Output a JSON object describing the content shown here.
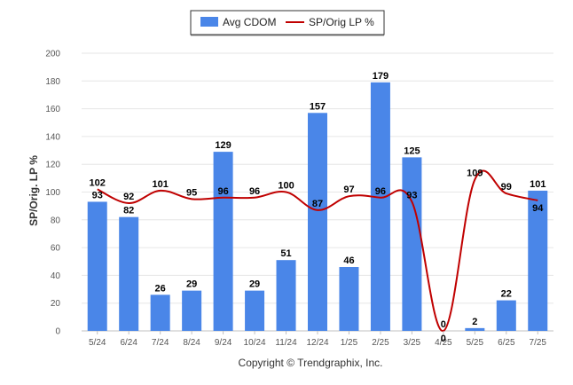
{
  "chart_data": {
    "type": "bar",
    "categories": [
      "5/24",
      "6/24",
      "7/24",
      "8/24",
      "9/24",
      "10/24",
      "11/24",
      "12/24",
      "1/25",
      "2/25",
      "3/25",
      "4/25",
      "5/25",
      "6/25",
      "7/25"
    ],
    "series": [
      {
        "name": "Avg CDOM",
        "type": "bar",
        "color": "#4a86e8",
        "values": [
          93,
          82,
          26,
          29,
          129,
          29,
          51,
          157,
          46,
          179,
          125,
          0,
          2,
          22,
          101
        ]
      },
      {
        "name": "SP/Orig LP %",
        "type": "line",
        "color": "#c00000",
        "values": [
          102,
          92,
          101,
          95,
          96,
          96,
          100,
          87,
          97,
          96,
          93,
          0,
          109,
          99,
          94
        ]
      }
    ],
    "ylabel": "SP/Orig. LP %",
    "xlabel": "",
    "ylim": [
      0,
      200
    ],
    "yticks": [
      0,
      20,
      40,
      60,
      80,
      100,
      120,
      140,
      160,
      180,
      200
    ],
    "grid": true,
    "legend_position": "top-center"
  },
  "footer": {
    "copyright": "Copyright © Trendgraphix, Inc."
  }
}
